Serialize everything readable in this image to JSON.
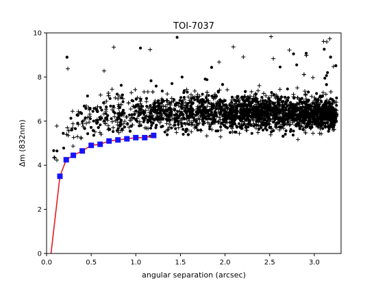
{
  "chart_data": {
    "type": "scatter",
    "title": "TOI-7037",
    "xlabel": "angular separation (arcsec)",
    "ylabel": "Δm (832nm)",
    "xlim": [
      0,
      3.3
    ],
    "ylim": [
      0,
      10
    ],
    "x_ticks": [
      "0.0",
      "0.5",
      "1.0",
      "1.5",
      "2.0",
      "2.5",
      "3.0"
    ],
    "y_ticks": [
      "0",
      "2",
      "4",
      "6",
      "8",
      "10"
    ],
    "grid": false,
    "legend": "none",
    "colors": {
      "contrast_curve": "#e41a1c",
      "contrast_points": "#1414ff",
      "scatter": "#000000"
    },
    "series": [
      {
        "kind": "contrast-curve",
        "x": [
          0.05,
          0.15,
          0.22,
          0.3,
          0.4,
          0.5,
          0.6,
          0.7,
          0.8,
          0.9,
          1.0,
          1.1,
          1.2
        ],
        "y": [
          0.0,
          3.5,
          4.25,
          4.45,
          4.65,
          4.9,
          4.95,
          5.1,
          5.15,
          5.2,
          5.25,
          5.25,
          5.35
        ]
      },
      {
        "kind": "contrast-points",
        "x": [
          0.15,
          0.22,
          0.3,
          0.4,
          0.5,
          0.6,
          0.7,
          0.8,
          0.9,
          1.0,
          1.1,
          1.2
        ],
        "y": [
          3.5,
          4.25,
          4.45,
          4.65,
          4.9,
          4.95,
          5.1,
          5.15,
          5.2,
          5.25,
          5.25,
          5.35
        ]
      },
      {
        "kind": "scatter-envelope",
        "marker": "dot+plus",
        "points": 2600,
        "x_range": [
          0.07,
          3.25
        ],
        "y_median": [
          [
            0.1,
            4.6
          ],
          [
            0.2,
            5.5
          ],
          [
            0.4,
            6.1
          ],
          [
            0.8,
            6.3
          ],
          [
            1.5,
            6.4
          ],
          [
            2.5,
            6.4
          ],
          [
            3.25,
            6.3
          ]
        ],
        "y_spread": [
          [
            0.1,
            0.5
          ],
          [
            0.3,
            0.5
          ],
          [
            0.8,
            0.45
          ],
          [
            2.0,
            0.42
          ],
          [
            3.25,
            0.35
          ]
        ]
      }
    ]
  }
}
